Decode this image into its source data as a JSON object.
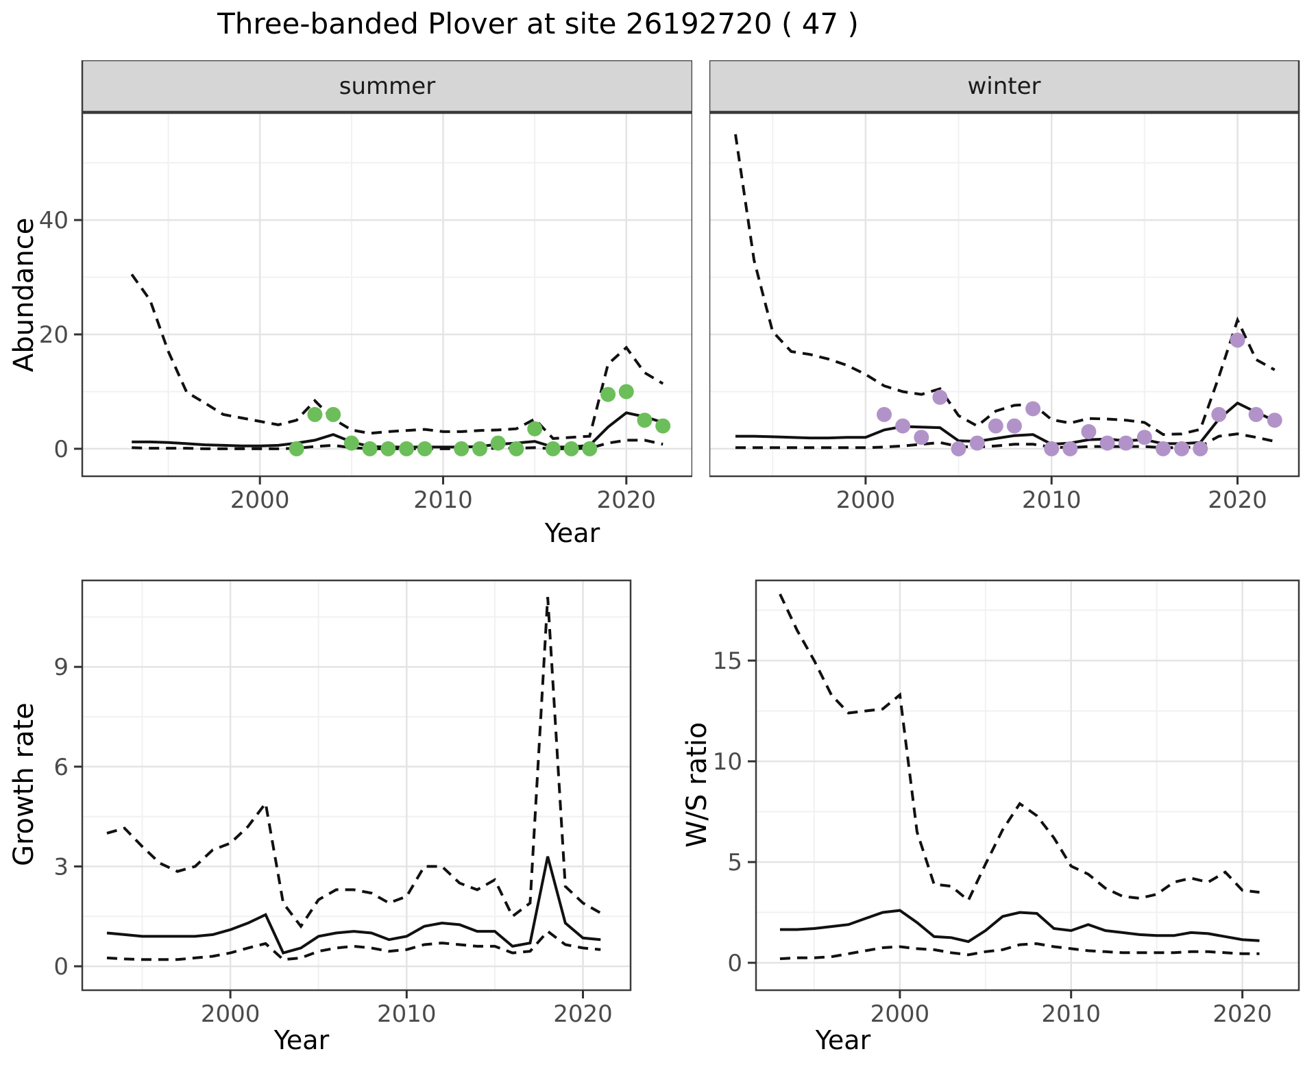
{
  "title": "Three-banded Plover at site 26192720 ( 47 )",
  "axis_titles": {
    "x_top": "Year",
    "x_growth": "Year",
    "x_ws": "Year",
    "y_abundance": "Abundance",
    "y_growth": "Growth rate",
    "y_ws": "W/S ratio"
  },
  "facet_labels": [
    "summer",
    "winter"
  ],
  "colors": {
    "summer_points": "#6CBE5A",
    "winter_points": "#B293C9",
    "line": "#111111",
    "grid_major": "#E4E4E4",
    "grid_minor": "#F1F1F1",
    "panel_border": "#3B3B3B",
    "strip_bg": "#D6D6D6",
    "strip_text": "#1A1A1A",
    "tick_label": "#4A4A4A",
    "tick_mark": "#333333"
  },
  "chart_data": [
    {
      "type": "line",
      "facet": "summer",
      "xlabel": "Year",
      "ylabel": "Abundance",
      "xlim": [
        1990.3,
        2023.6
      ],
      "ylim": [
        -4.8,
        58.7
      ],
      "x_major": [
        2000,
        2010,
        2020
      ],
      "x_minor": [
        1995,
        2005,
        2015
      ],
      "y_major": [
        0,
        20,
        40
      ],
      "y_minor": [
        10,
        30,
        50
      ],
      "grid": true,
      "legend": "none",
      "years": [
        1993,
        1994,
        1995,
        1996,
        1997,
        1998,
        1999,
        2000,
        2001,
        2002,
        2003,
        2004,
        2005,
        2006,
        2007,
        2008,
        2009,
        2010,
        2011,
        2012,
        2013,
        2014,
        2015,
        2016,
        2017,
        2018,
        2019,
        2020,
        2021,
        2022
      ],
      "median": [
        1.2,
        1.2,
        1.1,
        0.9,
        0.7,
        0.6,
        0.5,
        0.5,
        0.6,
        1.0,
        1.5,
        2.5,
        1.2,
        0.4,
        0.3,
        0.3,
        0.3,
        0.3,
        0.3,
        0.4,
        0.8,
        1.0,
        1.3,
        0.3,
        0.3,
        0.6,
        3.8,
        6.3,
        5.6,
        4.6
      ],
      "upper": [
        30.5,
        26.0,
        17.0,
        9.9,
        8.0,
        6.0,
        5.4,
        4.8,
        4.2,
        5.0,
        8.4,
        5.2,
        3.3,
        2.7,
        3.0,
        3.2,
        3.4,
        3.0,
        3.0,
        3.2,
        3.3,
        3.5,
        5.2,
        1.8,
        2.0,
        2.2,
        14.8,
        17.7,
        13.3,
        11.4
      ],
      "lower": [
        0.2,
        0.1,
        0.1,
        0.1,
        0,
        0,
        0,
        0,
        0,
        0.1,
        0.4,
        0.6,
        0.2,
        0,
        0,
        0,
        0,
        0,
        0,
        0,
        0.1,
        0.1,
        0.2,
        0,
        0,
        0.1,
        1.0,
        1.5,
        1.5,
        0.8
      ],
      "points": {
        "color_key": "summer_points",
        "years": [
          2002,
          2003,
          2004,
          2005,
          2006,
          2007,
          2008,
          2009,
          2011,
          2012,
          2013,
          2014,
          2015,
          2016,
          2017,
          2018,
          2019,
          2020,
          2021,
          2022
        ],
        "values": [
          0,
          6,
          6,
          1,
          0,
          0,
          0,
          0,
          0,
          0,
          1,
          0,
          3.5,
          0,
          0,
          0,
          9.5,
          10,
          5,
          4
        ]
      }
    },
    {
      "type": "line",
      "facet": "winter",
      "xlabel": "Year",
      "ylabel": "Abundance",
      "xlim": [
        1991.6,
        2023.3
      ],
      "ylim": [
        -4.8,
        58.7
      ],
      "x_major": [
        2000,
        2010,
        2020
      ],
      "x_minor": [
        1995,
        2005,
        2015
      ],
      "y_major": [
        0,
        20,
        40
      ],
      "y_minor": [
        10,
        30,
        50
      ],
      "grid": true,
      "legend": "none",
      "years": [
        1993,
        1994,
        1995,
        1996,
        1997,
        1998,
        1999,
        2000,
        2001,
        2002,
        2003,
        2004,
        2005,
        2006,
        2007,
        2008,
        2009,
        2010,
        2011,
        2012,
        2013,
        2014,
        2015,
        2016,
        2017,
        2018,
        2019,
        2020,
        2021,
        2022
      ],
      "median": [
        2.2,
        2.2,
        2.1,
        2.0,
        1.9,
        1.9,
        2.0,
        2.0,
        3.3,
        3.9,
        3.8,
        3.7,
        1.4,
        1.3,
        1.8,
        2.3,
        2.5,
        0.8,
        1.0,
        1.6,
        1.7,
        1.4,
        1.6,
        0.9,
        0.9,
        1.1,
        5.2,
        8.0,
        6.4,
        4.9
      ],
      "upper": [
        55.0,
        33.0,
        20.5,
        17.0,
        16.5,
        15.7,
        14.6,
        13.0,
        11.0,
        10.0,
        9.5,
        10.5,
        5.8,
        4.0,
        6.6,
        7.6,
        7.8,
        5.1,
        4.5,
        5.3,
        5.2,
        5.0,
        4.6,
        2.5,
        2.6,
        3.4,
        12.6,
        22.5,
        15.6,
        13.8
      ],
      "lower": [
        0.2,
        0.2,
        0.2,
        0.2,
        0.2,
        0.2,
        0.2,
        0.2,
        0.3,
        0.5,
        0.8,
        1.1,
        0.4,
        0.3,
        0.5,
        0.8,
        0.8,
        0.3,
        0.2,
        0.4,
        0.4,
        0.4,
        0.4,
        0.2,
        0.2,
        0.4,
        2.2,
        2.6,
        2.0,
        1.3
      ],
      "points": {
        "color_key": "winter_points",
        "years": [
          2001,
          2002,
          2003,
          2004,
          2005,
          2006,
          2007,
          2008,
          2009,
          2010,
          2011,
          2012,
          2013,
          2014,
          2015,
          2016,
          2017,
          2018,
          2019,
          2020,
          2021,
          2022
        ],
        "values": [
          6,
          4,
          2,
          9,
          0,
          1,
          4,
          4,
          7,
          0,
          0,
          3,
          1,
          1,
          2,
          0,
          0,
          0,
          6,
          19,
          6,
          5
        ]
      }
    },
    {
      "type": "line",
      "facet": null,
      "xlabel": "Year",
      "ylabel": "Growth rate",
      "xlim": [
        1991.6,
        2022.7
      ],
      "ylim": [
        -0.72,
        11.6
      ],
      "x_major": [
        2000,
        2010,
        2020
      ],
      "x_minor": [
        1995,
        2005,
        2015
      ],
      "y_major": [
        0,
        3,
        6,
        9
      ],
      "y_minor": [
        1.5,
        4.5,
        7.5,
        10.5
      ],
      "grid": true,
      "legend": "none",
      "years": [
        1993,
        1994,
        1995,
        1996,
        1997,
        1998,
        1999,
        2000,
        2001,
        2002,
        2003,
        2004,
        2005,
        2006,
        2007,
        2008,
        2009,
        2010,
        2011,
        2012,
        2013,
        2014,
        2015,
        2016,
        2017,
        2018,
        2019,
        2020,
        2021
      ],
      "median": [
        1.0,
        0.95,
        0.9,
        0.9,
        0.9,
        0.9,
        0.95,
        1.1,
        1.3,
        1.55,
        0.4,
        0.55,
        0.9,
        1.0,
        1.05,
        1.0,
        0.8,
        0.9,
        1.2,
        1.3,
        1.25,
        1.05,
        1.05,
        0.6,
        0.7,
        3.3,
        1.3,
        0.85,
        0.8
      ],
      "upper": [
        4.0,
        4.15,
        3.6,
        3.1,
        2.85,
        3.0,
        3.5,
        3.7,
        4.2,
        4.9,
        1.9,
        1.2,
        2.0,
        2.3,
        2.3,
        2.2,
        1.9,
        2.1,
        3.0,
        3.0,
        2.5,
        2.3,
        2.6,
        1.5,
        1.9,
        11.1,
        2.4,
        1.9,
        1.6
      ],
      "lower": [
        0.25,
        0.22,
        0.2,
        0.2,
        0.2,
        0.25,
        0.3,
        0.4,
        0.55,
        0.68,
        0.2,
        0.25,
        0.45,
        0.55,
        0.6,
        0.55,
        0.45,
        0.5,
        0.65,
        0.7,
        0.65,
        0.6,
        0.6,
        0.4,
        0.45,
        1.05,
        0.65,
        0.55,
        0.5
      ],
      "points": null
    },
    {
      "type": "line",
      "facet": null,
      "xlabel": "Year",
      "ylabel": "W/S ratio",
      "xlim": [
        1991.6,
        2023.3
      ],
      "ylim": [
        -1.36,
        18.98
      ],
      "x_major": [
        2000,
        2010,
        2020
      ],
      "x_minor": [
        1995,
        2005,
        2015
      ],
      "y_major": [
        0,
        5,
        10,
        15
      ],
      "y_minor": [
        2.5,
        7.5,
        12.5,
        17.5
      ],
      "grid": true,
      "legend": "none",
      "years": [
        1993,
        1994,
        1995,
        1996,
        1997,
        1998,
        1999,
        2000,
        2001,
        2002,
        2003,
        2004,
        2005,
        2006,
        2007,
        2008,
        2009,
        2010,
        2011,
        2012,
        2013,
        2014,
        2015,
        2016,
        2017,
        2018,
        2019,
        2020,
        2021
      ],
      "median": [
        1.65,
        1.65,
        1.7,
        1.8,
        1.9,
        2.2,
        2.5,
        2.6,
        2.0,
        1.3,
        1.25,
        1.05,
        1.6,
        2.3,
        2.5,
        2.45,
        1.7,
        1.6,
        1.9,
        1.6,
        1.5,
        1.4,
        1.35,
        1.35,
        1.5,
        1.45,
        1.3,
        1.15,
        1.1
      ],
      "upper": [
        18.3,
        16.5,
        15.0,
        13.3,
        12.4,
        12.5,
        12.6,
        13.3,
        6.5,
        3.9,
        3.8,
        3.1,
        4.9,
        6.6,
        7.9,
        7.3,
        6.2,
        4.8,
        4.4,
        3.7,
        3.3,
        3.2,
        3.4,
        4.0,
        4.2,
        4.0,
        4.5,
        3.6,
        3.5
      ],
      "lower": [
        0.2,
        0.25,
        0.25,
        0.3,
        0.45,
        0.6,
        0.75,
        0.8,
        0.7,
        0.65,
        0.5,
        0.4,
        0.55,
        0.65,
        0.9,
        0.95,
        0.8,
        0.7,
        0.6,
        0.55,
        0.5,
        0.5,
        0.5,
        0.5,
        0.55,
        0.55,
        0.5,
        0.45,
        0.45
      ],
      "points": null
    }
  ]
}
